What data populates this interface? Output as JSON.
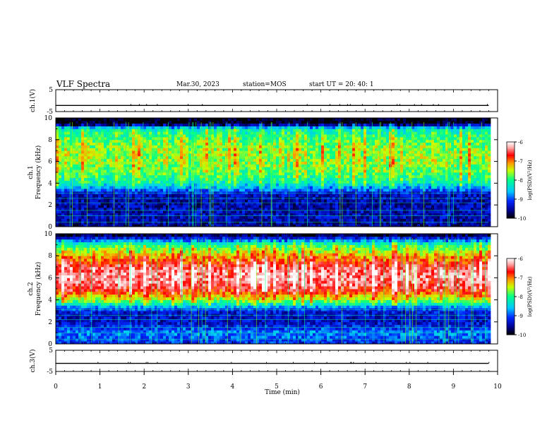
{
  "header": {
    "title": "VLF Spectra",
    "date": "Mar.30, 2023",
    "station": "station=MOS",
    "start": "start  UT =   20: 40: 1"
  },
  "colorbar": {
    "label": "log(PSD)(V²/Hz)",
    "ticks": [
      "-6",
      "-7",
      "-8",
      "-9",
      "-10"
    ],
    "colors": [
      "#ffffff",
      "#ff0000",
      "#ffff00",
      "#00ff00",
      "#00ffff",
      "#0000ff",
      "#000000"
    ]
  },
  "chart_data": [
    {
      "type": "line",
      "name": "ch1-voltage",
      "ylabel": "ch.1(V)",
      "ylim": [
        -5,
        5
      ],
      "yticks": [
        "5",
        "-5"
      ],
      "x": [
        0,
        1,
        2,
        3,
        4,
        5,
        6,
        7,
        8,
        9,
        9.8
      ],
      "values": [
        -2.2,
        -2.2,
        -2.2,
        -2.2,
        -2.2,
        -2.2,
        -2.2,
        -2.2,
        -2.2,
        -2.2,
        -2.2
      ]
    },
    {
      "type": "heatmap",
      "name": "ch1-spectrogram",
      "ylabel": "ch.1\nFrequency (kHz)",
      "ylim": [
        0,
        10
      ],
      "yticks": [
        "0",
        "2",
        "4",
        "6",
        "8",
        "10"
      ],
      "xlim": [
        0,
        10
      ],
      "data_end_min": 9.8,
      "freq_profile_kHz": [
        0,
        1,
        2,
        3,
        4,
        5,
        6,
        7,
        8,
        9,
        9.5,
        10
      ],
      "freq_profile_logpsd": [
        -9.6,
        -9.4,
        -9.5,
        -9.4,
        -8.2,
        -7.8,
        -7.6,
        -7.6,
        -7.8,
        -8.2,
        -10,
        -10
      ]
    },
    {
      "type": "heatmap",
      "name": "ch2-spectrogram",
      "ylabel": "ch.2\nFrequency (kHz)",
      "ylim": [
        0,
        10
      ],
      "yticks": [
        "0",
        "2",
        "4",
        "6",
        "8",
        "10"
      ],
      "xlim": [
        0,
        10
      ],
      "data_end_min": 9.8,
      "freq_profile_kHz": [
        0,
        1,
        2,
        3,
        4,
        5,
        6,
        7,
        8,
        9,
        9.5,
        10
      ],
      "freq_profile_logpsd": [
        -9.2,
        -8.8,
        -9.4,
        -9.3,
        -7.6,
        -6.6,
        -6.3,
        -6.5,
        -7.2,
        -8.0,
        -9.0,
        -10
      ]
    },
    {
      "type": "line",
      "name": "ch3-voltage",
      "ylabel": "ch.3(V)",
      "ylim": [
        -5,
        5
      ],
      "yticks": [
        "5",
        "-5"
      ],
      "x": [
        0,
        1,
        2,
        3,
        4,
        5,
        6,
        7,
        8,
        9,
        9.8
      ],
      "values": [
        -1.2,
        -1.2,
        -1.2,
        -1.2,
        -1.2,
        -1.2,
        -1.2,
        -1.2,
        -1.2,
        -1.2,
        -1.2
      ]
    }
  ],
  "xaxis": {
    "label": "Time  (min)",
    "ticks": [
      "0",
      "1",
      "2",
      "3",
      "4",
      "5",
      "6",
      "7",
      "8",
      "9",
      "10"
    ],
    "xlim": [
      0,
      10
    ]
  }
}
